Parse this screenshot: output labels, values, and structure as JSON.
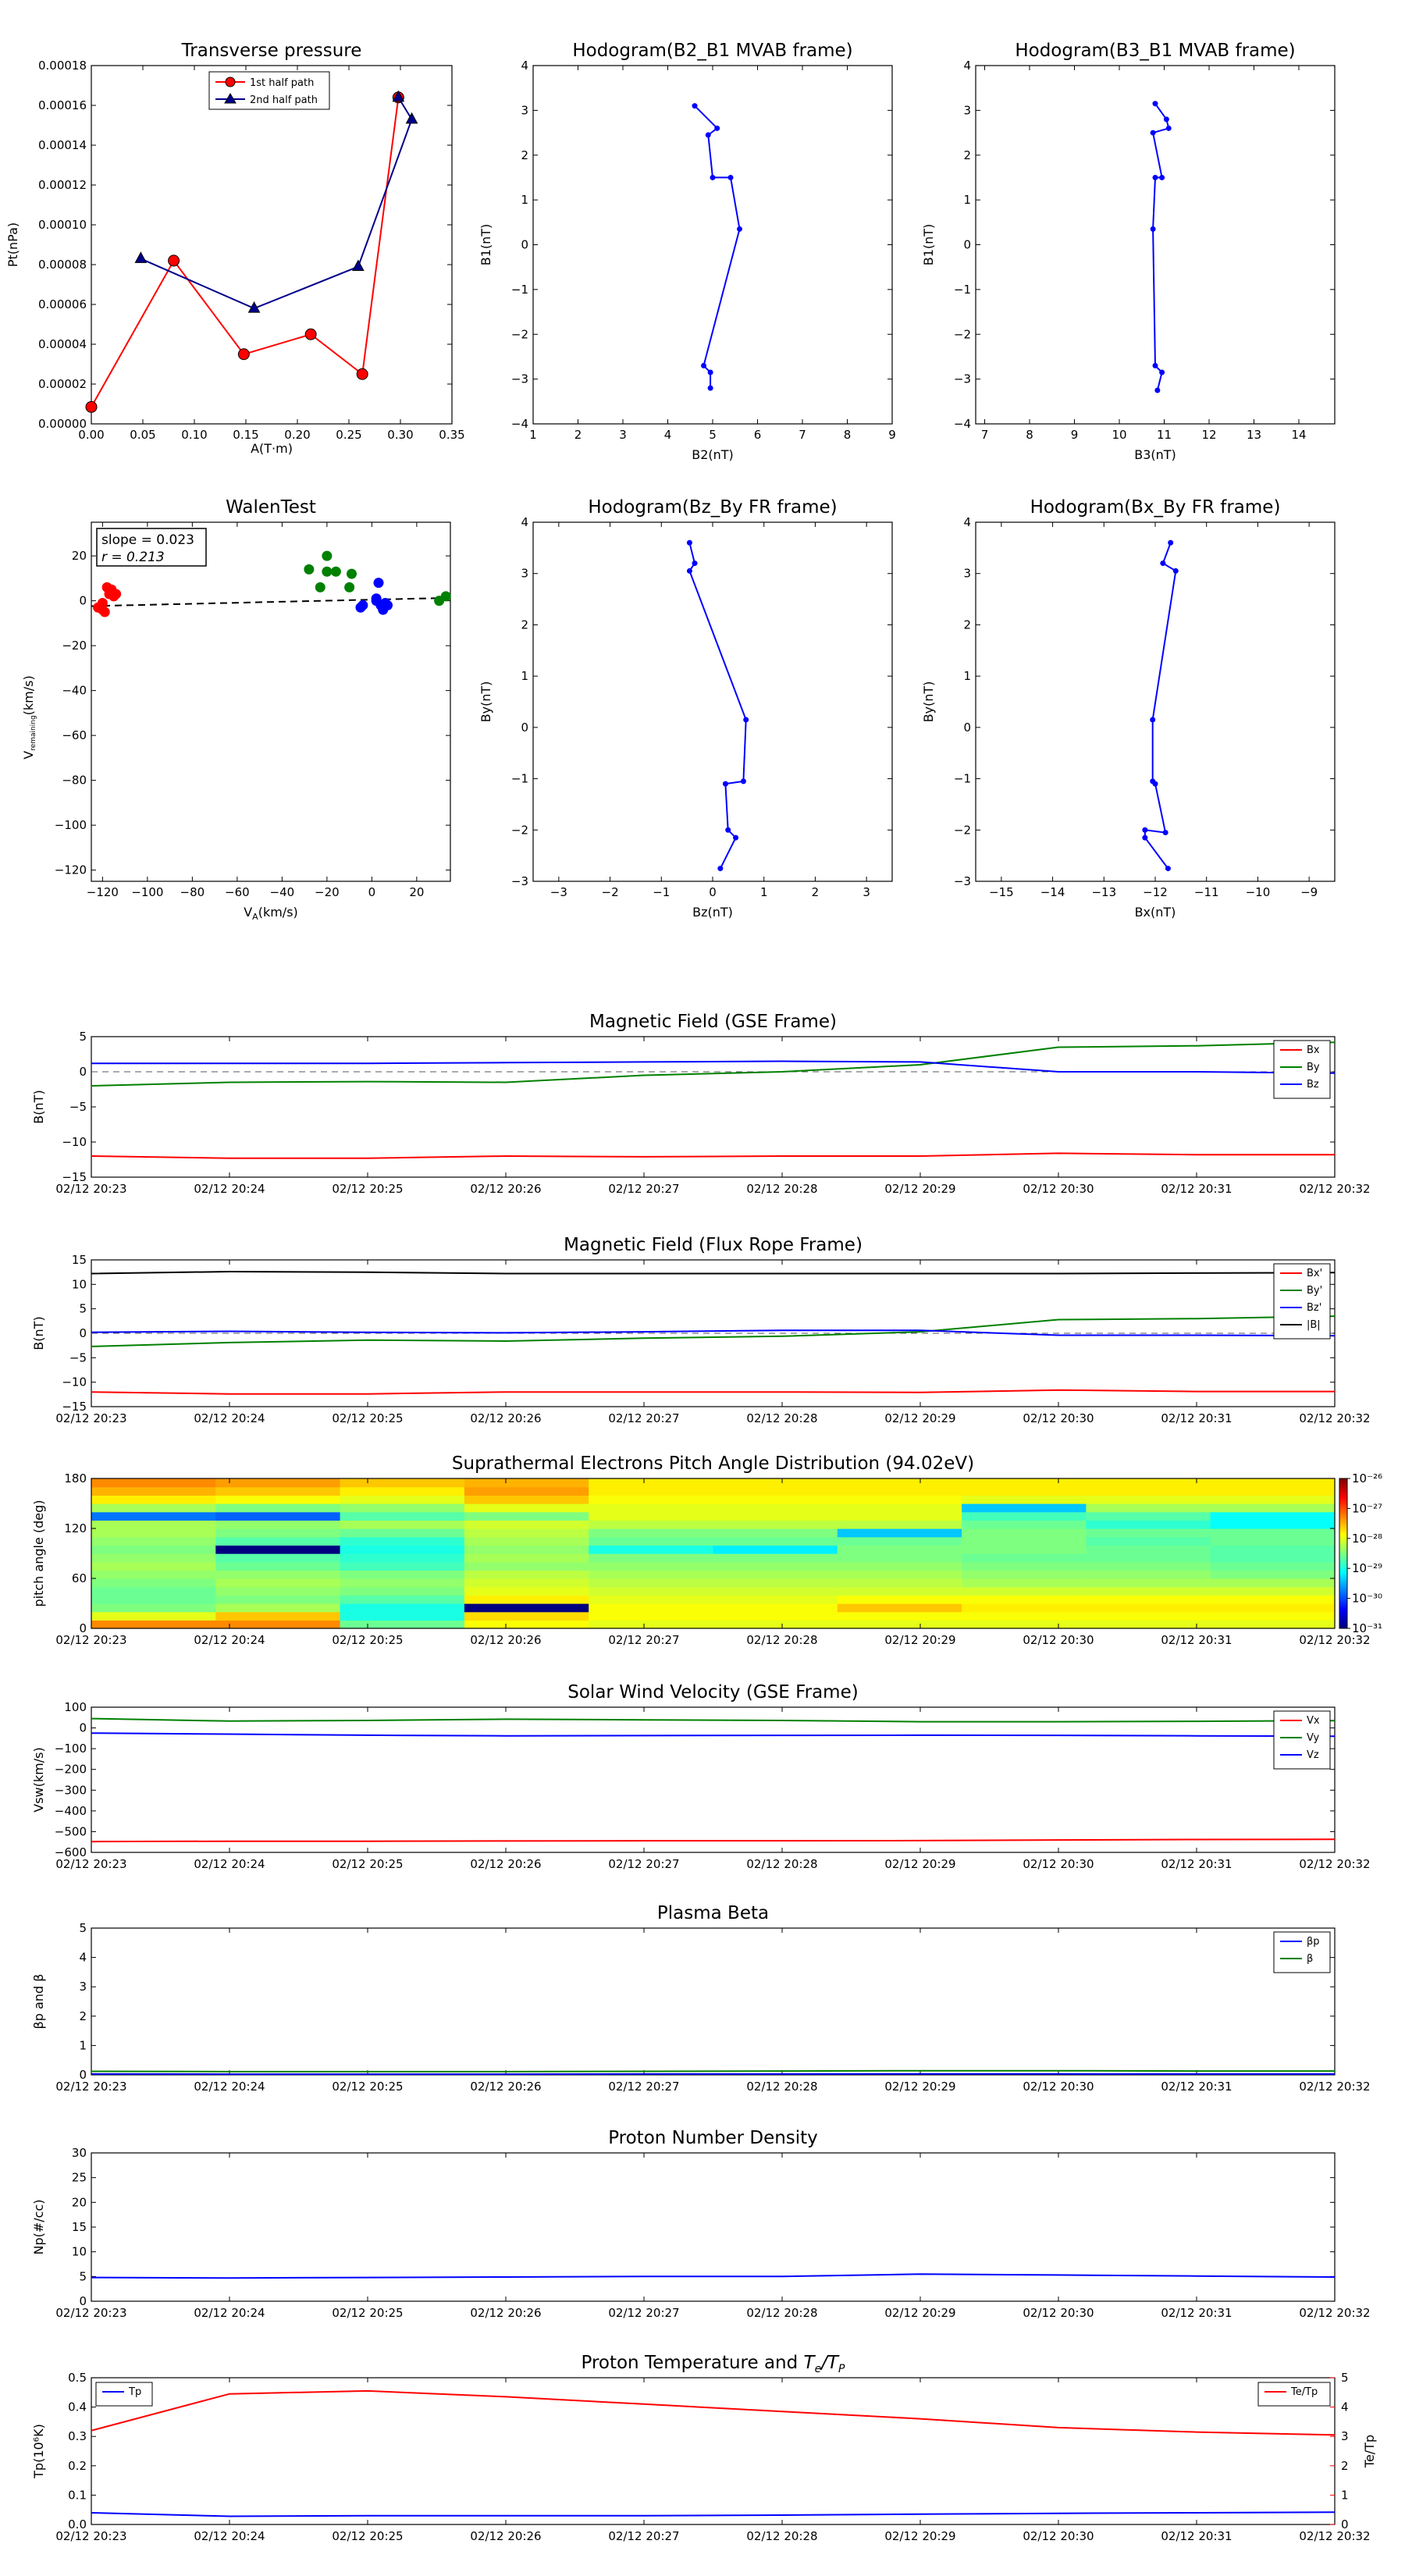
{
  "time_labels": [
    "02/12 20:23",
    "02/12 20:24",
    "02/12 20:25",
    "02/12 20:26",
    "02/12 20:27",
    "02/12 20:28",
    "02/12 20:29",
    "02/12 20:30",
    "02/12 20:31",
    "02/12 20:32"
  ],
  "colors": {
    "red": "#ff0000",
    "green": "#008000",
    "blue": "#0000ff",
    "navy": "#00008b",
    "black": "#000000"
  },
  "chart_data": [
    {
      "id": "transverse-pressure",
      "type": "line",
      "title": "Transverse pressure",
      "xlabel": "A(T·m)",
      "ylabel": "Pt(nPa)",
      "xlim": [
        0,
        0.35
      ],
      "ylim": [
        0,
        0.00018
      ],
      "xticks": [
        "0.00",
        "0.05",
        "0.10",
        "0.15",
        "0.20",
        "0.25",
        "0.30",
        "0.35"
      ],
      "yticks": [
        "0.00000",
        "0.00002",
        "0.00004",
        "0.00006",
        "0.00008",
        "0.00010",
        "0.00012",
        "0.00014",
        "0.00016",
        "0.00018"
      ],
      "legend": {
        "position": "upper-center",
        "entries": [
          "1st half path",
          "2nd half path"
        ]
      },
      "series": [
        {
          "name": "1st half path",
          "color": "#ff0000",
          "marker": "circle",
          "x": [
            0.0,
            0.08,
            0.148,
            0.213,
            0.263,
            0.298
          ],
          "y": [
            8.5e-06,
            8.2e-05,
            3.5e-05,
            4.5e-05,
            2.5e-05,
            0.000164
          ]
        },
        {
          "name": "2nd half path",
          "color": "#00008b",
          "marker": "triangle",
          "x": [
            0.298,
            0.311,
            0.259,
            0.158,
            0.048
          ],
          "y": [
            0.000164,
            0.000153,
            7.9e-05,
            5.8e-05,
            8.3e-05
          ]
        }
      ]
    },
    {
      "id": "hodogram-b2-b1",
      "type": "line",
      "title": "Hodogram(B2_B1 MVAB frame)",
      "xlabel": "B2(nT)",
      "ylabel": "B1(nT)",
      "xlim": [
        1,
        9
      ],
      "ylim": [
        -4,
        4
      ],
      "xticks": [
        "1",
        "2",
        "3",
        "4",
        "5",
        "6",
        "7",
        "8",
        "9"
      ],
      "yticks": [
        "−4",
        "−3",
        "−2",
        "−1",
        "0",
        "1",
        "2",
        "3",
        "4"
      ],
      "series": [
        {
          "color": "#0000ff",
          "x": [
            4.6,
            5.1,
            4.9,
            5.0,
            5.4,
            5.6,
            4.8,
            4.95,
            4.95
          ],
          "y": [
            3.1,
            2.6,
            2.45,
            1.5,
            1.5,
            0.35,
            -2.7,
            -2.85,
            -3.2
          ]
        }
      ]
    },
    {
      "id": "hodogram-b3-b1",
      "type": "line",
      "title": "Hodogram(B3_B1 MVAB frame)",
      "xlabel": "B3(nT)",
      "ylabel": "B1(nT)",
      "xlim": [
        6.8,
        14.8
      ],
      "ylim": [
        -4,
        4
      ],
      "xticks": [
        "7",
        "8",
        "9",
        "10",
        "11",
        "12",
        "13",
        "14"
      ],
      "yticks": [
        "−4",
        "−3",
        "−2",
        "−1",
        "0",
        "1",
        "2",
        "3",
        "4"
      ],
      "series": [
        {
          "color": "#0000ff",
          "x": [
            10.8,
            11.05,
            11.1,
            10.75,
            10.95,
            10.8,
            10.75,
            10.8,
            10.95,
            10.85
          ],
          "y": [
            3.15,
            2.8,
            2.6,
            2.5,
            1.5,
            1.5,
            0.35,
            -2.7,
            -2.85,
            -3.25
          ]
        }
      ]
    },
    {
      "id": "walen-test",
      "type": "scatter",
      "title": "WalenTest",
      "xlabel": "V_A(km/s)",
      "ylabel": "V_remaining(km/s)",
      "xlim": [
        -125,
        35
      ],
      "ylim": [
        -125,
        35
      ],
      "xticks": [
        "−120",
        "−100",
        "−80",
        "−60",
        "−40",
        "−20",
        "0",
        "20"
      ],
      "yticks": [
        "−120",
        "−100",
        "−80",
        "−60",
        "−40",
        "−20",
        "0",
        "20"
      ],
      "annotation": [
        "slope = 0.023",
        "r = 0.213"
      ],
      "fit": {
        "slope": 0.023,
        "intercept": 0.5
      },
      "series": [
        {
          "color": "#ff0000",
          "x": [
            -122,
            -120,
            -119,
            -118,
            -117,
            -116,
            -115,
            -114,
            -120
          ],
          "y": [
            -3,
            -1,
            -5,
            6,
            3,
            5,
            2,
            3,
            -4
          ]
        },
        {
          "color": "#008000",
          "x": [
            -28,
            -23,
            -20,
            -20,
            -16,
            -10,
            -9,
            30,
            33
          ],
          "y": [
            14,
            6,
            20,
            13,
            13,
            6,
            12,
            0,
            2
          ]
        },
        {
          "color": "#0000ff",
          "x": [
            -5,
            -4,
            2,
            3,
            4,
            5,
            6,
            7,
            2
          ],
          "y": [
            -3,
            -2,
            0,
            8,
            -2,
            -4,
            -1,
            -2,
            1
          ]
        }
      ]
    },
    {
      "id": "hodogram-bz-by",
      "type": "line",
      "title": "Hodogram(Bz_By FR frame)",
      "xlabel": "Bz(nT)",
      "ylabel": "By(nT)",
      "xlim": [
        -3.5,
        3.5
      ],
      "ylim": [
        -3,
        4
      ],
      "xticks": [
        "−3",
        "−2",
        "−1",
        "0",
        "1",
        "2",
        "3"
      ],
      "yticks": [
        "−3",
        "−2",
        "−1",
        "0",
        "1",
        "2",
        "3",
        "4"
      ],
      "series": [
        {
          "color": "#0000ff",
          "x": [
            -0.45,
            -0.35,
            -0.45,
            0.65,
            0.6,
            0.25,
            0.3,
            0.45,
            0.15
          ],
          "y": [
            3.6,
            3.2,
            3.05,
            0.15,
            -1.05,
            -1.1,
            -2.0,
            -2.15,
            -2.75
          ]
        }
      ]
    },
    {
      "id": "hodogram-bx-by",
      "type": "line",
      "title": "Hodogram(Bx_By FR frame)",
      "xlabel": "Bx(nT)",
      "ylabel": "By(nT)",
      "xlim": [
        -15.5,
        -8.5
      ],
      "ylim": [
        -3,
        4
      ],
      "xticks": [
        "−15",
        "−14",
        "−13",
        "−12",
        "−11",
        "−10",
        "−9"
      ],
      "yticks": [
        "−3",
        "−2",
        "−1",
        "0",
        "1",
        "2",
        "3",
        "4"
      ],
      "series": [
        {
          "color": "#0000ff",
          "x": [
            -11.7,
            -11.85,
            -11.6,
            -12.05,
            -12.05,
            -12.0,
            -11.8,
            -12.2,
            -12.2,
            -11.75
          ],
          "y": [
            3.6,
            3.2,
            3.05,
            0.15,
            -1.05,
            -1.1,
            -2.05,
            -2.0,
            -2.15,
            -2.75
          ]
        }
      ]
    },
    {
      "id": "magnetic-field-gse",
      "type": "line",
      "title": "Magnetic Field (GSE Frame)",
      "ylabel": "B(nT)",
      "ylim": [
        -15,
        5
      ],
      "yticks": [
        "−15",
        "−10",
        "−5",
        "0",
        "5"
      ],
      "legend": {
        "position": "top-right",
        "entries": [
          "Bx",
          "By",
          "Bz"
        ]
      },
      "zero_line": true,
      "series": [
        {
          "name": "Bx",
          "color": "#ff0000",
          "y": [
            -12.0,
            -12.3,
            -12.3,
            -12.0,
            -12.1,
            -12.0,
            -12.0,
            -11.6,
            -11.8,
            -11.8
          ]
        },
        {
          "name": "By",
          "color": "#008000",
          "y": [
            -2.0,
            -1.5,
            -1.4,
            -1.5,
            -0.5,
            0.0,
            1.0,
            3.5,
            3.7,
            4.2
          ]
        },
        {
          "name": "Bz",
          "color": "#0000ff",
          "y": [
            1.2,
            1.2,
            1.2,
            1.3,
            1.4,
            1.5,
            1.4,
            0.0,
            0.0,
            -0.2
          ]
        }
      ]
    },
    {
      "id": "magnetic-field-fr",
      "type": "line",
      "title": "Magnetic Field (Flux Rope Frame)",
      "ylabel": "B(nT)",
      "ylim": [
        -15,
        15
      ],
      "yticks": [
        "−15",
        "−10",
        "−5",
        "0",
        "5",
        "10",
        "15"
      ],
      "legend": {
        "position": "top-right",
        "entries": [
          "Bx'",
          "By'",
          "Bz'",
          "|B|"
        ]
      },
      "zero_line": true,
      "series": [
        {
          "name": "Bx'",
          "color": "#ff0000",
          "y": [
            -12.0,
            -12.4,
            -12.4,
            -12.0,
            -12.0,
            -12.0,
            -12.1,
            -11.6,
            -11.9,
            -11.9
          ]
        },
        {
          "name": "By'",
          "color": "#008000",
          "y": [
            -2.7,
            -1.9,
            -1.4,
            -1.6,
            -1.0,
            -0.6,
            0.3,
            2.8,
            3.0,
            3.5
          ]
        },
        {
          "name": "Bz'",
          "color": "#0000ff",
          "y": [
            0.2,
            0.4,
            0.2,
            0.1,
            0.3,
            0.6,
            0.6,
            -0.4,
            -0.4,
            -0.5
          ]
        },
        {
          "name": "|B|",
          "color": "#000000",
          "y": [
            12.2,
            12.6,
            12.5,
            12.2,
            12.2,
            12.2,
            12.2,
            12.2,
            12.3,
            12.4
          ]
        }
      ]
    },
    {
      "id": "pitch-angle-distribution",
      "type": "heatmap",
      "title": "Suprathermal Electrons Pitch Angle Distribution (94.02eV)",
      "ylabel": "pitch angle (deg)",
      "ylim": [
        0,
        180
      ],
      "yticks": [
        "0",
        "60",
        "120",
        "180"
      ],
      "colorbar": {
        "ticks": [
          "10⁻³¹",
          "10⁻³⁰",
          "10⁻²⁹",
          "10⁻²⁸",
          "10⁻²⁷",
          "10⁻²⁶"
        ],
        "min_exp": -31,
        "max_exp": -26
      },
      "bins": 18,
      "columns": [
        [
          -27.3,
          -28.0,
          -28.5,
          -28.6,
          -28.6,
          -28.5,
          -28.4,
          -28.3,
          -28.4,
          -28.5,
          -28.4,
          -28.3,
          -28.3,
          -29.8,
          -28.3,
          -27.8,
          -27.5,
          -27.3
        ],
        [
          -27.3,
          -27.6,
          -28.3,
          -28.5,
          -28.4,
          -28.3,
          -28.4,
          -28.6,
          -28.7,
          -31.0,
          -28.7,
          -28.5,
          -28.4,
          -29.9,
          -28.5,
          -27.9,
          -27.6,
          -27.4
        ],
        [
          -28.6,
          -29.0,
          -29.0,
          -28.7,
          -28.5,
          -28.4,
          -28.5,
          -28.8,
          -28.9,
          -29.0,
          -28.9,
          -28.6,
          -28.3,
          -28.7,
          -28.4,
          -28.0,
          -27.8,
          -27.6
        ],
        [
          -27.9,
          -27.7,
          -31.0,
          -27.8,
          -28.0,
          -28.1,
          -28.2,
          -28.4,
          -28.3,
          -28.4,
          -28.3,
          -28.2,
          -28.1,
          -28.5,
          -28.0,
          -27.6,
          -27.4,
          -27.5
        ],
        [
          -28.0,
          -27.9,
          -27.9,
          -28.0,
          -28.1,
          -28.2,
          -28.3,
          -28.4,
          -28.5,
          -29.0,
          -28.6,
          -28.5,
          -28.2,
          -28.0,
          -28.0,
          -27.9,
          -27.8,
          -27.8
        ],
        [
          -28.0,
          -27.9,
          -27.9,
          -28.0,
          -28.1,
          -28.2,
          -28.3,
          -28.4,
          -28.5,
          -29.2,
          -28.6,
          -28.5,
          -28.2,
          -28.0,
          -28.0,
          -27.9,
          -27.8,
          -27.8
        ],
        [
          -28.0,
          -27.9,
          -27.6,
          -27.9,
          -28.1,
          -28.2,
          -28.3,
          -28.4,
          -28.5,
          -28.5,
          -28.6,
          -29.4,
          -28.2,
          -28.0,
          -28.0,
          -27.9,
          -27.8,
          -27.8
        ],
        [
          -28.0,
          -27.9,
          -27.8,
          -27.9,
          -28.1,
          -28.3,
          -28.4,
          -28.5,
          -28.6,
          -28.5,
          -28.5,
          -28.5,
          -28.6,
          -28.8,
          -29.4,
          -28.0,
          -27.8,
          -27.8
        ],
        [
          -28.0,
          -27.9,
          -27.8,
          -27.9,
          -28.1,
          -28.3,
          -28.4,
          -28.5,
          -28.6,
          -28.6,
          -28.7,
          -28.6,
          -28.9,
          -28.7,
          -28.3,
          -28.0,
          -27.8,
          -27.8
        ],
        [
          -28.0,
          -27.9,
          -27.8,
          -27.9,
          -28.1,
          -28.3,
          -28.5,
          -28.6,
          -28.7,
          -28.7,
          -28.6,
          -28.6,
          -29.1,
          -29.1,
          -28.3,
          -28.0,
          -27.8,
          -27.8
        ]
      ]
    },
    {
      "id": "solar-wind-velocity",
      "type": "line",
      "title": "Solar Wind Velocity (GSE Frame)",
      "ylabel": "Vsw(km/s)",
      "ylim": [
        -600,
        100
      ],
      "yticks": [
        "−600",
        "−500",
        "−400",
        "−300",
        "−200",
        "−100",
        "0",
        "100"
      ],
      "legend": {
        "position": "top-right",
        "entries": [
          "Vx",
          "Vy",
          "Vz"
        ]
      },
      "series": [
        {
          "name": "Vx",
          "color": "#ff0000",
          "y": [
            -548,
            -546,
            -546,
            -545,
            -544,
            -544,
            -543,
            -540,
            -538,
            -537
          ]
        },
        {
          "name": "Vy",
          "color": "#008000",
          "y": [
            45,
            33,
            36,
            42,
            39,
            36,
            30,
            30,
            32,
            35
          ]
        },
        {
          "name": "Vz",
          "color": "#0000ff",
          "y": [
            -25,
            -30,
            -35,
            -38,
            -37,
            -36,
            -35,
            -36,
            -38,
            -40
          ]
        }
      ]
    },
    {
      "id": "plasma-beta",
      "type": "line",
      "title": "Plasma Beta",
      "ylabel": "βp and β",
      "ylim": [
        0,
        5
      ],
      "yticks": [
        "0",
        "1",
        "2",
        "3",
        "4",
        "5"
      ],
      "legend": {
        "position": "top-right",
        "entries": [
          "βp",
          "β"
        ]
      },
      "series": [
        {
          "name": "βp",
          "color": "#0000ff",
          "y": [
            0.03,
            0.025,
            0.025,
            0.025,
            0.028,
            0.03,
            0.035,
            0.033,
            0.03,
            0.03
          ]
        },
        {
          "name": "β",
          "color": "#008000",
          "y": [
            0.12,
            0.11,
            0.11,
            0.11,
            0.12,
            0.13,
            0.14,
            0.14,
            0.13,
            0.13
          ]
        }
      ]
    },
    {
      "id": "proton-density",
      "type": "line",
      "title": "Proton Number Density",
      "ylabel": "Np(#/cc)",
      "ylim": [
        0,
        30
      ],
      "yticks": [
        "0",
        "5",
        "10",
        "15",
        "20",
        "25",
        "30"
      ],
      "series": [
        {
          "color": "#0000ff",
          "y": [
            4.8,
            4.7,
            4.8,
            4.9,
            5.0,
            5.0,
            5.5,
            5.3,
            5.1,
            4.9
          ]
        }
      ]
    },
    {
      "id": "proton-temperature",
      "type": "line",
      "title": "Proton Temperature and Te/Tp",
      "ylabel": "Tp(10⁶K)",
      "ylabel_right": "Te/Tp",
      "ylim": [
        0,
        0.5
      ],
      "ylim_right": [
        0,
        5
      ],
      "yticks": [
        "0.0",
        "0.1",
        "0.2",
        "0.3",
        "0.4",
        "0.5"
      ],
      "yticks_right": [
        "0",
        "1",
        "2",
        "3",
        "4",
        "5"
      ],
      "legend": {
        "left": "Tp",
        "right": "Te/Tp"
      },
      "series": [
        {
          "name": "Tp",
          "color": "#0000ff",
          "axis": "left",
          "y": [
            0.04,
            0.028,
            0.03,
            0.03,
            0.03,
            0.032,
            0.035,
            0.038,
            0.04,
            0.042
          ]
        },
        {
          "name": "Te/Tp",
          "color": "#ff0000",
          "axis": "right",
          "y": [
            3.2,
            4.45,
            4.55,
            4.35,
            4.1,
            3.85,
            3.6,
            3.3,
            3.15,
            3.05
          ]
        }
      ]
    }
  ]
}
